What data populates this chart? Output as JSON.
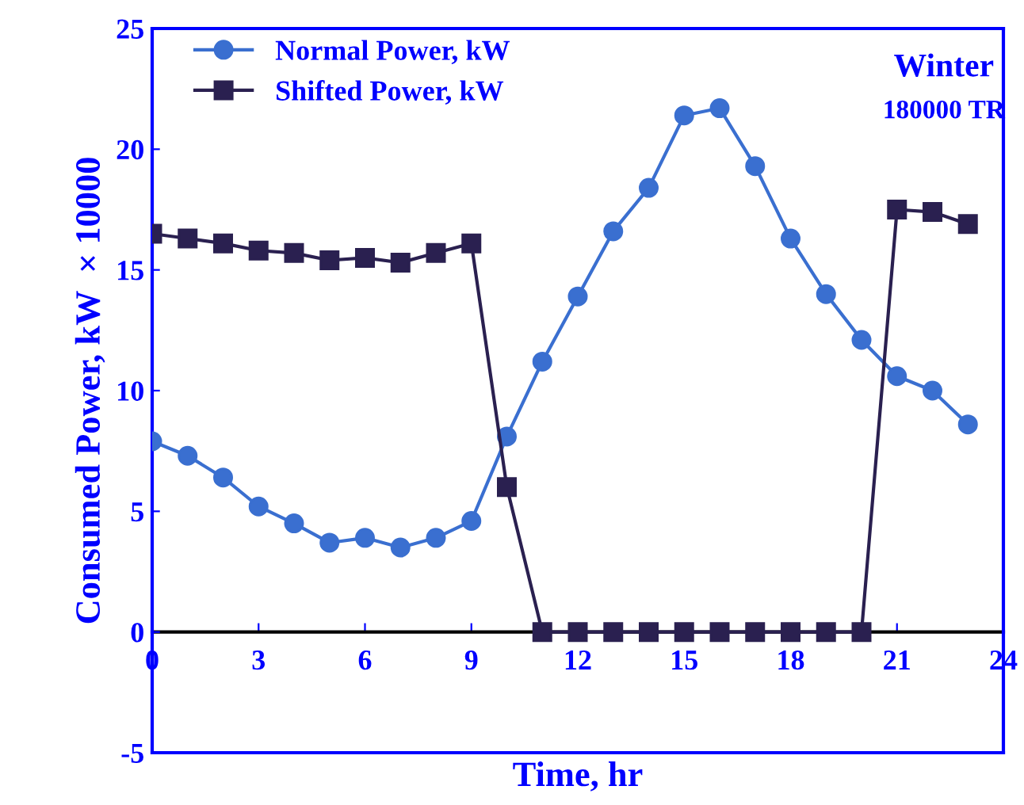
{
  "chart_data": {
    "type": "line",
    "xlabel": "Time, hr",
    "ylabel": "Consumed Power, kW  × 10000",
    "annotations": [
      "Winter",
      "180000 TR"
    ],
    "x": [
      0,
      1,
      2,
      3,
      4,
      5,
      6,
      7,
      8,
      9,
      10,
      11,
      12,
      13,
      14,
      15,
      16,
      17,
      18,
      19,
      20,
      21,
      22,
      23
    ],
    "series": [
      {
        "name": "Normal Power, kW",
        "color": "#3a6fd0",
        "marker": "circle",
        "values": [
          7.9,
          7.3,
          6.4,
          5.2,
          4.5,
          3.7,
          3.9,
          3.5,
          3.9,
          4.6,
          8.1,
          11.2,
          13.9,
          16.6,
          18.4,
          21.4,
          21.7,
          19.3,
          16.3,
          14.0,
          12.1,
          10.6,
          10.0,
          8.6
        ]
      },
      {
        "name": "Shifted Power, kW",
        "color": "#2a2050",
        "marker": "square",
        "values": [
          16.5,
          16.3,
          16.1,
          15.8,
          15.7,
          15.4,
          15.5,
          15.3,
          15.7,
          16.1,
          6.0,
          0,
          0,
          0,
          0,
          0,
          0,
          0,
          0,
          0,
          0,
          17.5,
          17.4,
          16.9
        ]
      }
    ],
    "xlim": [
      0,
      24
    ],
    "xticks": [
      0,
      3,
      6,
      9,
      12,
      15,
      18,
      21,
      24
    ],
    "ylim": [
      -5,
      25
    ],
    "yticks": [
      -5,
      0,
      5,
      10,
      15,
      20,
      25
    ],
    "legend": "top left",
    "grid": false
  }
}
